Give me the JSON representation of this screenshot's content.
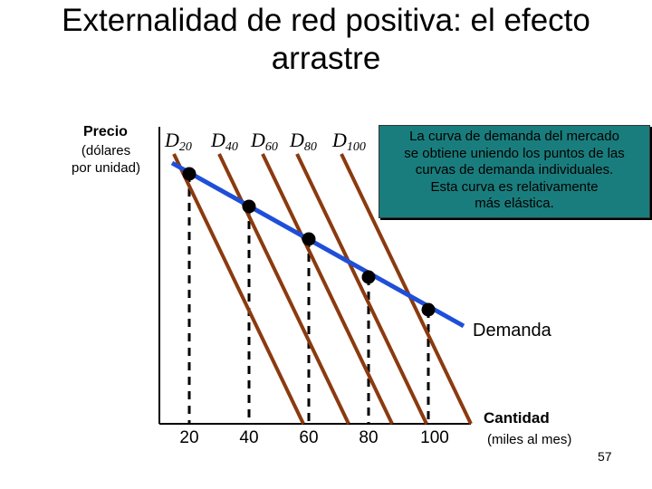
{
  "title": "Externalidad de red positiva: el efecto arrastre",
  "y_axis": {
    "label": "Precio",
    "sublabel_line1": "(dólares",
    "sublabel_line2": "por unidad)"
  },
  "x_axis": {
    "label": "Cantidad",
    "sublabel": "(miles al mes)",
    "ticks": [
      "20",
      "40",
      "60",
      "80",
      "100"
    ]
  },
  "curves": [
    {
      "letter": "D",
      "subscript": "20"
    },
    {
      "letter": "D",
      "subscript": "40"
    },
    {
      "letter": "D",
      "subscript": "60"
    },
    {
      "letter": "D",
      "subscript": "80"
    },
    {
      "letter": "D",
      "subscript": "100"
    }
  ],
  "market_demand_label": "Demanda",
  "callout": {
    "lines": [
      "La curva de demanda del mercado",
      "se obtiene uniendo los puntos de las",
      "curvas de demanda individuales.",
      "Esta curva es relativamente",
      "más elástica."
    ],
    "background": "#1a7d7d"
  },
  "colors": {
    "individual_demand": "#8b3a0f",
    "market_demand": "#1f4fd8",
    "points": "#000000"
  },
  "chart_data": {
    "type": "line",
    "x": [
      20,
      40,
      60,
      80,
      100
    ],
    "market_demand_points": [
      20,
      40,
      60,
      80,
      100
    ]
  },
  "page_number": "57"
}
